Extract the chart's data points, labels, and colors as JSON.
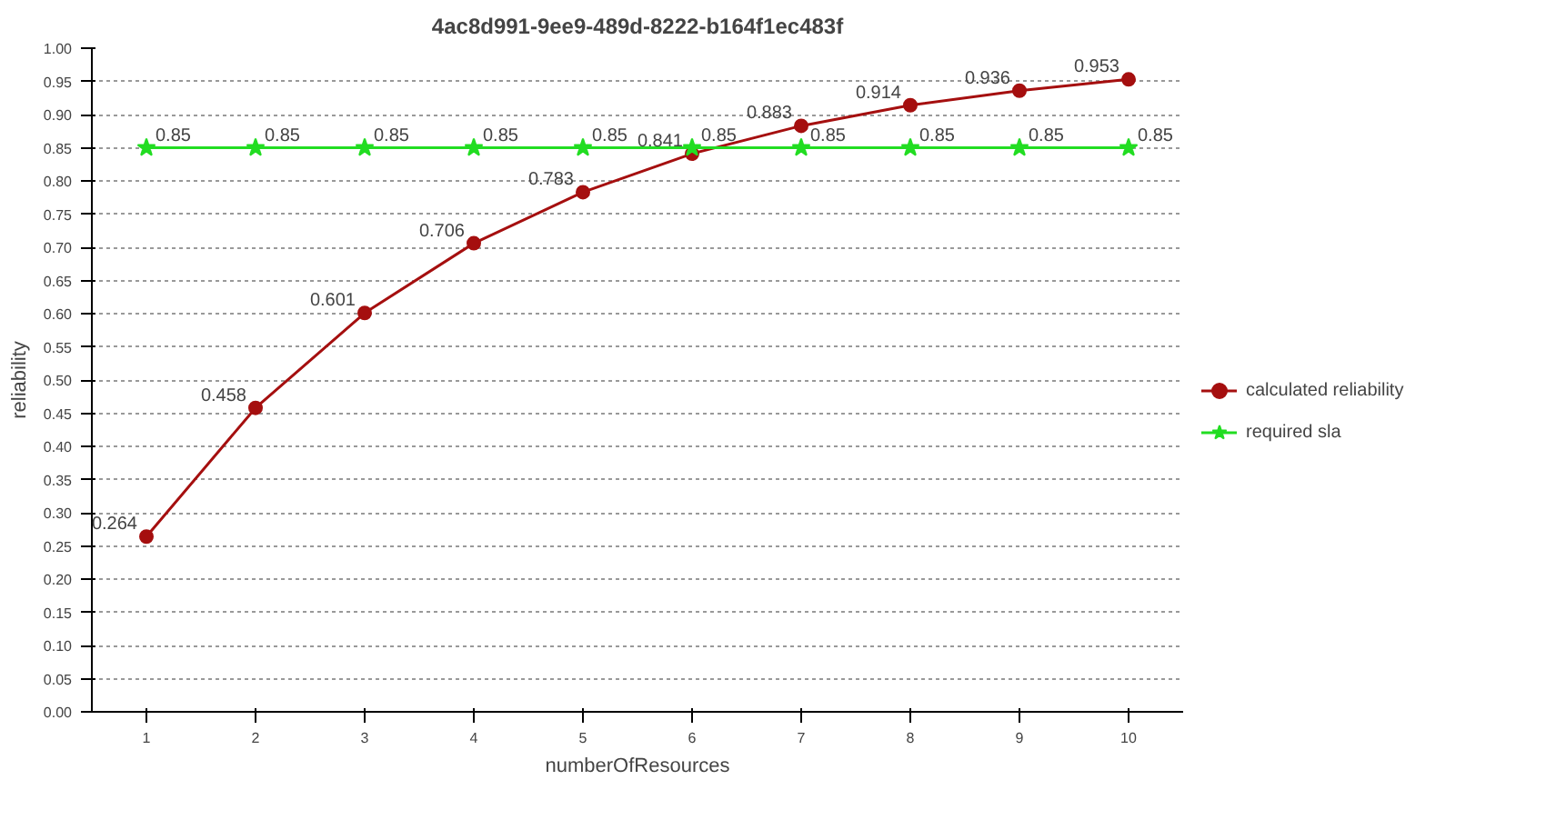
{
  "chart_data": {
    "type": "line",
    "title": "4ac8d991-9ee9-489d-8222-b164f1ec483f",
    "xlabel": "numberOfResources",
    "ylabel": "reliability",
    "categories": [
      "1",
      "2",
      "3",
      "4",
      "5",
      "6",
      "7",
      "8",
      "9",
      "10"
    ],
    "series": [
      {
        "name": "calculated reliability",
        "color": "#a50f0f",
        "marker": "circle",
        "values": [
          0.264,
          0.458,
          0.601,
          0.706,
          0.783,
          0.841,
          0.883,
          0.914,
          0.936,
          0.953
        ]
      },
      {
        "name": "required sla",
        "color": "#22dd22",
        "marker": "star",
        "values": [
          0.85,
          0.85,
          0.85,
          0.85,
          0.85,
          0.85,
          0.85,
          0.85,
          0.85,
          0.85
        ]
      }
    ],
    "ylim": [
      0,
      1
    ],
    "yticks": [
      {
        "value": 0,
        "label": "0.00"
      },
      {
        "value": 0.05,
        "label": "0.05"
      },
      {
        "value": 0.1,
        "label": "0.10"
      },
      {
        "value": 0.15,
        "label": "0.15"
      },
      {
        "value": 0.2,
        "label": "0.20"
      },
      {
        "value": 0.25,
        "label": "0.25"
      },
      {
        "value": 0.3,
        "label": "0.30"
      },
      {
        "value": 0.35,
        "label": "0.35"
      },
      {
        "value": 0.4,
        "label": "0.40"
      },
      {
        "value": 0.45,
        "label": "0.45"
      },
      {
        "value": 0.5,
        "label": "0.50"
      },
      {
        "value": 0.55,
        "label": "0.55"
      },
      {
        "value": 0.6,
        "label": "0.60"
      },
      {
        "value": 0.65,
        "label": "0.65"
      },
      {
        "value": 0.7,
        "label": "0.70"
      },
      {
        "value": 0.75,
        "label": "0.75"
      },
      {
        "value": 0.8,
        "label": "0.80"
      },
      {
        "value": 0.85,
        "label": "0.85"
      },
      {
        "value": 0.9,
        "label": "0.90"
      },
      {
        "value": 0.95,
        "label": "0.95"
      },
      {
        "value": 1,
        "label": "1.00"
      }
    ],
    "grid": "y",
    "legend": "right",
    "data_labels": true,
    "line_style": "solid"
  }
}
